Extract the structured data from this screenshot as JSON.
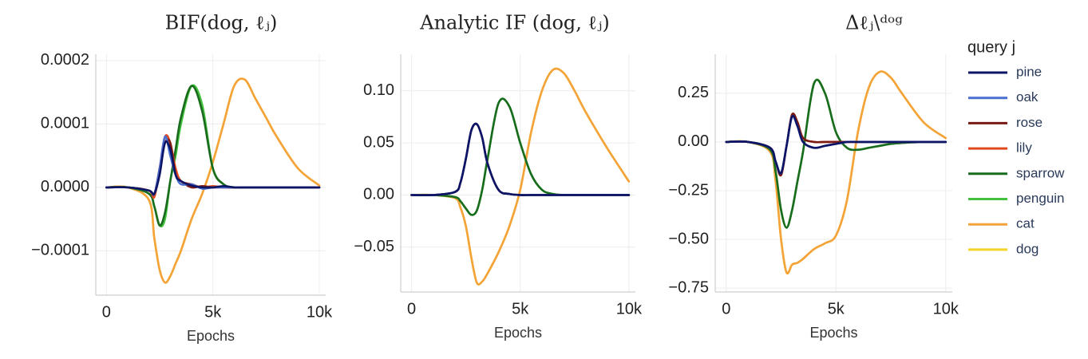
{
  "chart_data": [
    {
      "type": "line",
      "title": "BIF(dog, ℓⱼ)",
      "x_label": "Epochs",
      "x": [
        0,
        1000,
        2000,
        2250,
        2500,
        2750,
        3000,
        3250,
        3500,
        4000,
        4500,
        5000,
        5500,
        6000,
        6500,
        7000,
        7500,
        8000,
        9000,
        10000
      ],
      "xlim": [
        -500,
        10300
      ],
      "xticks": [
        0,
        {
          "value": 5000,
          "label": "5k"
        },
        {
          "value": 10000,
          "label": "10k"
        }
      ],
      "ylim": [
        -0.00017,
        0.00021
      ],
      "yticks": [
        0.0002,
        0.0001,
        {
          "value": 0,
          "label": "0.0000"
        },
        {
          "value": -0.0001,
          "label": "−0.0001"
        }
      ],
      "grid": true,
      "series": [
        {
          "name": "pine",
          "color": "#0c1466",
          "values": [
            0,
            0,
            -5e-06,
            -1e-05,
            2e-05,
            7e-05,
            6e-05,
            2e-05,
            1e-05,
            3e-06,
            0,
            0,
            2e-06,
            0,
            0,
            0,
            0,
            0,
            0,
            0
          ]
        },
        {
          "name": "oak",
          "color": "#4a6fd0",
          "values": [
            0,
            0,
            -5e-06,
            -1e-05,
            3e-05,
            8e-05,
            5e-05,
            2e-05,
            5e-06,
            5e-06,
            -2e-06,
            0,
            0,
            0,
            0,
            0,
            0,
            0,
            0,
            0
          ]
        },
        {
          "name": "rose",
          "color": "#7a1a14",
          "values": [
            0,
            0,
            -5e-06,
            -1e-05,
            3e-05,
            7e-05,
            7e-05,
            2e-05,
            1e-05,
            0,
            2e-06,
            0,
            0,
            0,
            0,
            0,
            0,
            0,
            0,
            0
          ]
        },
        {
          "name": "lily",
          "color": "#e0491d",
          "values": [
            0,
            0,
            -5e-06,
            -1.5e-05,
            3e-05,
            8e-05,
            7e-05,
            3e-05,
            1e-05,
            5e-06,
            0,
            2e-06,
            0,
            0,
            0,
            0,
            0,
            0,
            0,
            0
          ]
        },
        {
          "name": "sparrow",
          "color": "#196b1d",
          "values": [
            0,
            0,
            -1e-05,
            -3e-05,
            -6e-05,
            -4e-05,
            1e-05,
            6e-05,
            0.00011,
            0.00016,
            0.00012,
            3e-05,
            5e-06,
            0,
            0,
            0,
            0,
            0,
            0,
            0
          ]
        },
        {
          "name": "penguin",
          "color": "#44c23f",
          "values": [
            0,
            0,
            -1e-05,
            -3e-05,
            -6e-05,
            -5e-05,
            1e-05,
            5e-05,
            0.0001,
            0.00016,
            0.00013,
            3e-05,
            5e-06,
            0,
            0,
            0,
            0,
            0,
            0,
            0
          ]
        },
        {
          "name": "cat",
          "color": "#f4a23a",
          "values": [
            0,
            0,
            -2e-05,
            -8e-05,
            -0.00013,
            -0.00015,
            -0.00014,
            -0.00012,
            -0.0001,
            -5e-05,
            -1e-05,
            4e-05,
            0.0001,
            0.00016,
            0.00017,
            0.00014,
            0.00011,
            8e-05,
            3e-05,
            3e-06
          ]
        },
        {
          "name": "dog",
          "color": "#f5d328",
          "values": [
            0,
            0,
            -2e-05,
            -8e-05,
            -0.00013,
            -0.00015,
            -0.00014,
            -0.00012,
            -0.0001,
            -5e-05,
            -1e-05,
            4e-05,
            0.0001,
            0.00016,
            0.00017,
            0.00014,
            0.00011,
            8e-05,
            3e-05,
            3e-06
          ]
        }
      ]
    },
    {
      "type": "line",
      "title": "Analytic IF (dog, ℓⱼ)",
      "x_label": "Epochs",
      "x": [
        0,
        1000,
        2000,
        2250,
        2500,
        2750,
        3000,
        3250,
        3500,
        4000,
        4500,
        5000,
        5500,
        6000,
        6500,
        7000,
        7500,
        8000,
        9000,
        10000
      ],
      "xlim": [
        -500,
        10300
      ],
      "xticks": [
        0,
        {
          "value": 5000,
          "label": "5k"
        },
        {
          "value": 10000,
          "label": "10k"
        }
      ],
      "ylim": [
        -0.093,
        0.135
      ],
      "yticks": [
        {
          "value": 0.1,
          "label": "0.10"
        },
        0.05,
        {
          "value": 0,
          "label": "0.00"
        },
        {
          "value": -0.05,
          "label": "−0.05"
        }
      ],
      "grid": true,
      "series": [
        {
          "name": "pine",
          "color": "#0c1466",
          "values": [
            0,
            0,
            0.003,
            0.012,
            0.035,
            0.062,
            0.068,
            0.055,
            0.03,
            0.005,
            0.001,
            0,
            0,
            0,
            0,
            0,
            0,
            0,
            0,
            0
          ]
        },
        {
          "name": "oak",
          "color": "#4a6fd0",
          "values": [
            0,
            0,
            0.003,
            0.012,
            0.035,
            0.062,
            0.068,
            0.055,
            0.03,
            0.005,
            0.001,
            0,
            0,
            0,
            0,
            0,
            0,
            0,
            0,
            0
          ]
        },
        {
          "name": "rose",
          "color": "#7a1a14",
          "values": [
            0,
            0,
            0.003,
            0.012,
            0.035,
            0.062,
            0.068,
            0.055,
            0.03,
            0.005,
            0.001,
            0,
            0,
            0,
            0,
            0,
            0,
            0,
            0,
            0
          ]
        },
        {
          "name": "lily",
          "color": "#e0491d",
          "values": [
            0,
            0,
            0.003,
            0.012,
            0.035,
            0.062,
            0.068,
            0.055,
            0.03,
            0.005,
            0.001,
            0,
            0,
            0,
            0,
            0,
            0,
            0,
            0,
            0
          ]
        },
        {
          "name": "sparrow",
          "color": "#196b1d",
          "values": [
            0,
            0,
            -0.002,
            -0.006,
            -0.013,
            -0.019,
            -0.015,
            0.005,
            0.035,
            0.088,
            0.085,
            0.05,
            0.02,
            0.005,
            0.001,
            0,
            0,
            0,
            0,
            0
          ]
        },
        {
          "name": "penguin",
          "color": "#44c23f",
          "values": [
            0,
            0,
            -0.002,
            -0.006,
            -0.013,
            -0.019,
            -0.015,
            0.005,
            0.035,
            0.088,
            0.085,
            0.05,
            0.02,
            0.005,
            0.001,
            0,
            0,
            0,
            0,
            0
          ]
        },
        {
          "name": "cat",
          "color": "#f4a23a",
          "values": [
            0,
            0,
            -0.003,
            -0.012,
            -0.03,
            -0.06,
            -0.084,
            -0.083,
            -0.075,
            -0.055,
            -0.03,
            0.005,
            0.06,
            0.1,
            0.12,
            0.117,
            0.1,
            0.08,
            0.045,
            0.013
          ]
        },
        {
          "name": "dog",
          "color": "#f5d328",
          "values": [
            0,
            0,
            -0.003,
            -0.012,
            -0.03,
            -0.06,
            -0.084,
            -0.083,
            -0.075,
            -0.055,
            -0.03,
            0.005,
            0.06,
            0.1,
            0.12,
            0.117,
            0.1,
            0.08,
            0.045,
            0.013
          ]
        }
      ]
    },
    {
      "type": "line",
      "title": "Δℓⱼ\\ᵈᵒᵍ",
      "x_label": "Epochs",
      "legend_title": "query j",
      "x": [
        0,
        1000,
        2000,
        2250,
        2500,
        2750,
        3000,
        3250,
        3500,
        4000,
        4500,
        5000,
        5500,
        6000,
        6500,
        7000,
        7500,
        8000,
        9000,
        10000
      ],
      "xlim": [
        -500,
        10300
      ],
      "xticks": [
        0,
        {
          "value": 5000,
          "label": "5k"
        },
        {
          "value": 10000,
          "label": "10k"
        }
      ],
      "ylim": [
        -0.77,
        0.45
      ],
      "yticks": [
        0.25,
        {
          "value": 0,
          "label": "0.00"
        },
        {
          "value": -0.25,
          "label": "−0.25"
        },
        {
          "value": -0.5,
          "label": "−0.50"
        },
        {
          "value": -0.75,
          "label": "−0.75"
        }
      ],
      "grid": true,
      "series": [
        {
          "name": "pine",
          "color": "#0c1466",
          "values": [
            0,
            0,
            -0.03,
            -0.1,
            -0.16,
            -0.02,
            0.13,
            0.08,
            0,
            -0.03,
            -0.02,
            -0.01,
            0,
            0,
            0,
            0,
            0,
            0,
            0,
            0
          ]
        },
        {
          "name": "oak",
          "color": "#4a6fd0",
          "values": [
            0,
            0,
            -0.03,
            -0.1,
            -0.16,
            -0.02,
            0.13,
            0.08,
            0,
            -0.03,
            -0.02,
            -0.01,
            0,
            0,
            0,
            0,
            0,
            0,
            0,
            0
          ]
        },
        {
          "name": "rose",
          "color": "#7a1a14",
          "values": [
            0,
            0,
            -0.03,
            -0.1,
            -0.17,
            -0.02,
            0.14,
            0.1,
            0.02,
            0,
            0,
            0,
            0,
            0,
            0,
            0,
            0,
            0,
            0,
            0
          ]
        },
        {
          "name": "lily",
          "color": "#e0491d",
          "values": [
            0,
            0,
            -0.03,
            -0.1,
            -0.17,
            -0.02,
            0.14,
            0.1,
            0.02,
            0,
            0,
            0,
            0,
            0,
            0,
            0,
            0,
            0,
            0,
            0
          ]
        },
        {
          "name": "sparrow",
          "color": "#196b1d",
          "values": [
            0,
            0,
            -0.04,
            -0.15,
            -0.35,
            -0.44,
            -0.35,
            -0.2,
            -0.05,
            0.3,
            0.25,
            0.05,
            -0.03,
            -0.04,
            -0.03,
            -0.02,
            -0.01,
            -0.005,
            0,
            0
          ]
        },
        {
          "name": "penguin",
          "color": "#44c23f",
          "values": [
            0,
            0,
            -0.04,
            -0.15,
            -0.35,
            -0.44,
            -0.35,
            -0.2,
            -0.05,
            0.3,
            0.25,
            0.05,
            -0.03,
            -0.04,
            -0.03,
            -0.02,
            -0.01,
            -0.005,
            0,
            0
          ]
        },
        {
          "name": "cat",
          "color": "#f4a23a",
          "values": [
            0,
            0,
            -0.05,
            -0.2,
            -0.5,
            -0.67,
            -0.63,
            -0.62,
            -0.6,
            -0.55,
            -0.52,
            -0.48,
            -0.3,
            0.05,
            0.28,
            0.36,
            0.33,
            0.25,
            0.1,
            0.02
          ]
        },
        {
          "name": "dog",
          "color": "#f5d328",
          "values": [
            0,
            0,
            -0.05,
            -0.2,
            -0.5,
            -0.67,
            -0.63,
            -0.62,
            -0.6,
            -0.55,
            -0.52,
            -0.48,
            -0.3,
            0.05,
            0.28,
            0.36,
            0.33,
            0.25,
            0.1,
            0.02
          ]
        }
      ]
    }
  ]
}
